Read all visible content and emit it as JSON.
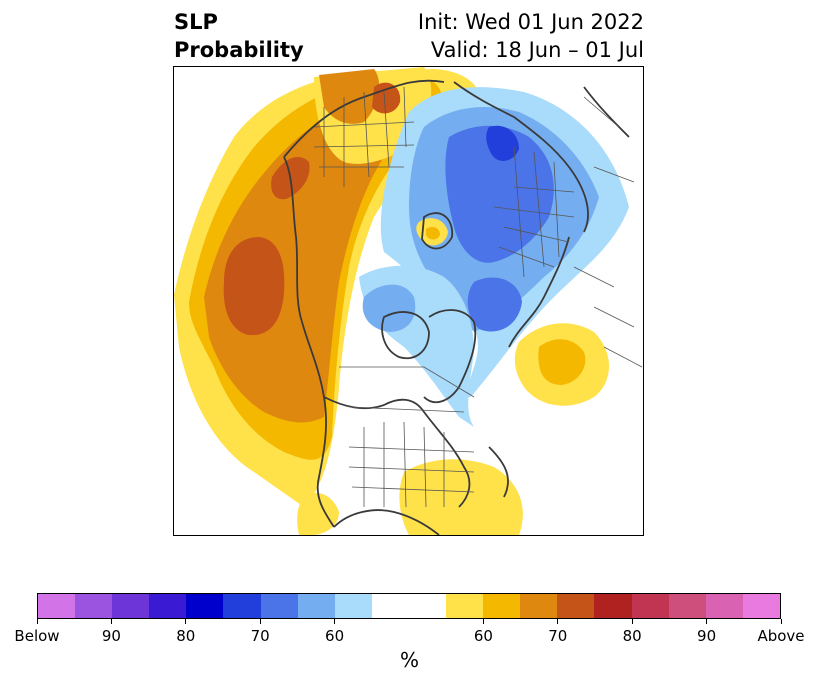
{
  "header": {
    "title_line1": "SLP",
    "title_line2": "Probability",
    "init_text": "Init: Wed 01 Jun 2022",
    "valid_text": "Valid: 18 Jun – 01 Jul"
  },
  "map": {
    "projection": "polar-stereographic-north",
    "coastline_color": "#3a3a3a",
    "border_color": "#555555"
  },
  "colorbar": {
    "colors": [
      "#d373e8",
      "#9b54e0",
      "#6d35d8",
      "#3b1ad4",
      "#0000cc",
      "#233fdb",
      "#4b74e8",
      "#74aef0",
      "#a9dbfa",
      "#ffffff",
      "#ffffff",
      "#ffe14a",
      "#f4b800",
      "#df8810",
      "#c55418",
      "#b0221f",
      "#c23552",
      "#ce4e7c",
      "#da62b2",
      "#e87ae0"
    ],
    "labels": [
      "Below",
      "90",
      "80",
      "70",
      "60",
      "60",
      "70",
      "80",
      "90",
      "Above"
    ],
    "units": "%"
  }
}
